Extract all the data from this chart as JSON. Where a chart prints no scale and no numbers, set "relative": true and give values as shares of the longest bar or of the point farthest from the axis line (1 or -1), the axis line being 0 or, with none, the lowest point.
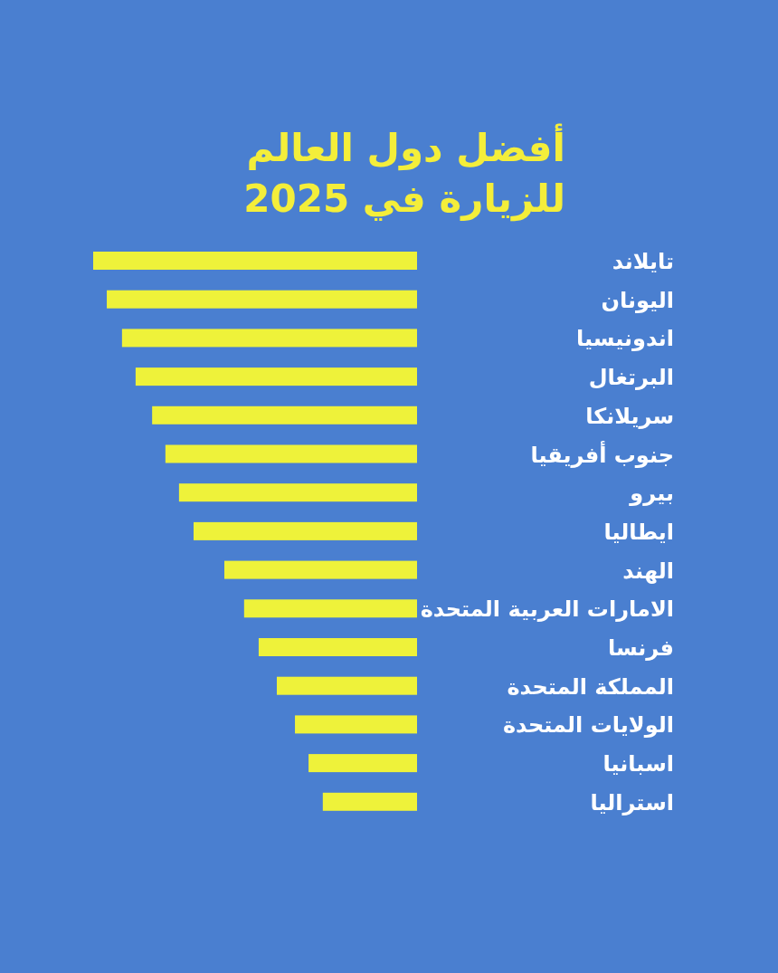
{
  "chart_data": {
    "type": "bar",
    "orientation": "horizontal",
    "relative": true,
    "title": "أفضل دول العالم للزيارة في 2025",
    "categories": [
      "تايلاند",
      "اليونان",
      "اندونيسيا",
      "البرتغال",
      "سريلانكا",
      "جنوب أفريقيا",
      "بيرو",
      "ايطاليا",
      "الهند",
      "الامارات العربية المتحدة",
      "فرنسا",
      "المملكة المتحدة",
      "الولايات المتحدة",
      "اسبانيا",
      "استراليا"
    ],
    "series": [
      {
        "color": "#eef23a",
        "values": [
          1,
          0.958,
          0.911,
          0.869,
          0.818,
          0.777,
          0.735,
          0.69,
          0.595,
          0.534,
          0.489,
          0.433,
          0.377,
          0.335,
          0.291
        ]
      }
    ]
  }
}
